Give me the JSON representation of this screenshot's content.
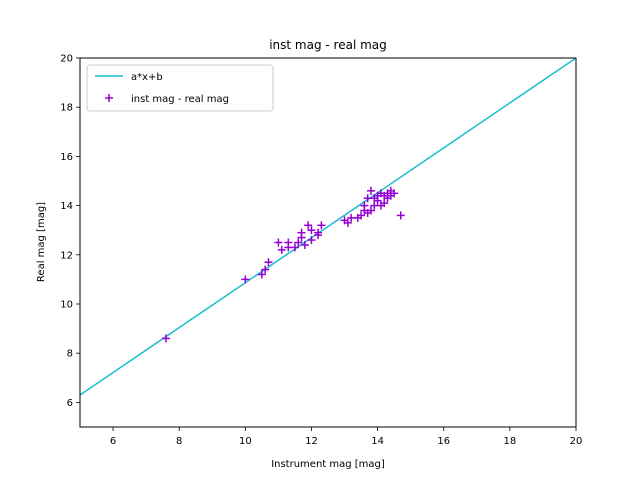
{
  "chart_data": {
    "type": "scatter",
    "title": "inst mag - real mag",
    "xlabel": "Instrument mag [mag]",
    "ylabel": "Real mag [mag]",
    "xlim": [
      5,
      20
    ],
    "ylim": [
      5,
      20
    ],
    "xticks": [
      6,
      8,
      10,
      12,
      14,
      16,
      18,
      20
    ],
    "yticks": [
      6,
      8,
      10,
      12,
      14,
      16,
      18,
      20
    ],
    "grid": false,
    "legend_position": "top-left",
    "series": [
      {
        "name": "a*x+b",
        "kind": "line",
        "color": "#17becf",
        "x": [
          5,
          20
        ],
        "y": [
          6.3,
          20.0
        ]
      },
      {
        "name": "inst mag - real mag",
        "kind": "scatter",
        "marker": "+",
        "color": "#9400d3",
        "x": [
          7.6,
          10.0,
          10.5,
          10.6,
          10.7,
          11.0,
          11.1,
          11.3,
          11.3,
          11.5,
          11.6,
          11.7,
          11.7,
          11.8,
          11.9,
          12.0,
          12.0,
          12.2,
          12.2,
          12.3,
          13.0,
          13.1,
          13.2,
          13.4,
          13.5,
          13.6,
          13.6,
          13.7,
          13.7,
          13.8,
          13.8,
          13.9,
          13.9,
          14.0,
          14.0,
          14.1,
          14.1,
          14.2,
          14.2,
          14.3,
          14.3,
          14.4,
          14.4,
          14.5,
          14.7
        ],
        "y": [
          8.6,
          11.0,
          11.2,
          11.4,
          11.7,
          12.5,
          12.2,
          12.3,
          12.5,
          12.3,
          12.5,
          12.7,
          12.9,
          12.4,
          13.2,
          12.6,
          13.0,
          12.8,
          12.9,
          13.2,
          13.4,
          13.3,
          13.5,
          13.5,
          13.6,
          13.8,
          14.0,
          13.7,
          14.3,
          13.8,
          14.6,
          14.0,
          14.3,
          14.2,
          14.4,
          14.0,
          14.5,
          14.1,
          14.4,
          14.3,
          14.5,
          14.4,
          14.6,
          14.5,
          13.6
        ]
      }
    ]
  }
}
